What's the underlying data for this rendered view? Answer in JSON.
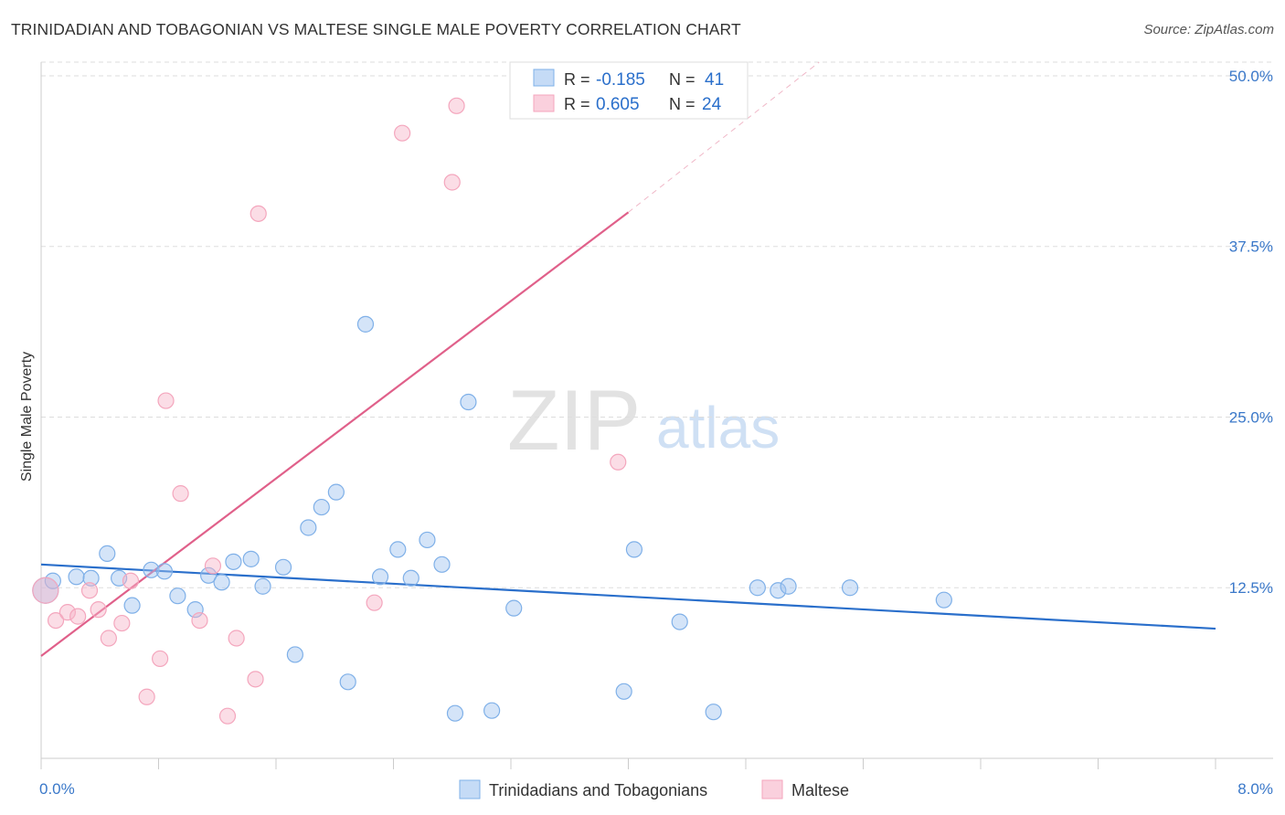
{
  "title": "TRINIDADIAN AND TOBAGONIAN VS MALTESE SINGLE MALE POVERTY CORRELATION CHART",
  "source": "Source: ZipAtlas.com",
  "watermark": {
    "zip": "ZIP",
    "atlas": "atlas"
  },
  "legend_stats": [
    {
      "r_label": "R =",
      "r_value": "-0.185",
      "n_label": "N =",
      "n_value": "41",
      "color": "#7fb0e8"
    },
    {
      "r_label": "R =",
      "r_value": "0.605",
      "n_label": "N =",
      "n_value": "24",
      "color": "#f4a6bd"
    }
  ],
  "chart_data": {
    "type": "scatter",
    "title": "TRINIDADIAN AND TOBAGONIAN VS MALTESE SINGLE MALE POVERTY CORRELATION CHART",
    "xlabel": "",
    "ylabel": "Single Male Poverty",
    "xlim": [
      0,
      8
    ],
    "ylim": [
      0,
      51
    ],
    "x_tick_labels": [
      "0.0%",
      "8.0%"
    ],
    "y_ticks": [
      12.5,
      25.0,
      37.5,
      50.0
    ],
    "y_tick_labels": [
      "12.5%",
      "25.0%",
      "37.5%",
      "50.0%"
    ],
    "grid": true,
    "legend_position": "bottom",
    "series": [
      {
        "name": "Trinidadians and Tobagonians",
        "color": "#7fb0e8",
        "line_color": "#2a6fcb",
        "trend": {
          "x": [
            0.0,
            8.0
          ],
          "y": [
            14.2,
            9.5
          ]
        },
        "points": [
          [
            0.03,
            12.3
          ],
          [
            0.08,
            13.0
          ],
          [
            0.24,
            13.3
          ],
          [
            0.34,
            13.2
          ],
          [
            0.45,
            15.0
          ],
          [
            0.53,
            13.2
          ],
          [
            0.62,
            11.2
          ],
          [
            0.75,
            13.8
          ],
          [
            0.84,
            13.7
          ],
          [
            0.93,
            11.9
          ],
          [
            1.05,
            10.9
          ],
          [
            1.14,
            13.4
          ],
          [
            1.23,
            12.9
          ],
          [
            1.31,
            14.4
          ],
          [
            1.43,
            14.6
          ],
          [
            1.51,
            12.6
          ],
          [
            1.65,
            14.0
          ],
          [
            1.73,
            7.6
          ],
          [
            1.82,
            16.9
          ],
          [
            1.91,
            18.4
          ],
          [
            2.01,
            19.5
          ],
          [
            2.09,
            5.6
          ],
          [
            2.21,
            31.8
          ],
          [
            2.31,
            13.3
          ],
          [
            2.43,
            15.3
          ],
          [
            2.52,
            13.2
          ],
          [
            2.63,
            16.0
          ],
          [
            2.73,
            14.2
          ],
          [
            2.82,
            3.3
          ],
          [
            2.91,
            26.1
          ],
          [
            3.07,
            3.5
          ],
          [
            3.22,
            11.0
          ],
          [
            3.97,
            4.9
          ],
          [
            4.04,
            15.3
          ],
          [
            4.35,
            10.0
          ],
          [
            4.58,
            3.4
          ],
          [
            4.88,
            12.5
          ],
          [
            5.02,
            12.3
          ],
          [
            5.09,
            12.6
          ],
          [
            5.51,
            12.5
          ],
          [
            6.15,
            11.6
          ]
        ]
      },
      {
        "name": "Maltese",
        "color": "#f4a6bd",
        "line_color": "#e0608a",
        "trend": {
          "x": [
            0.0,
            4.0
          ],
          "y": [
            7.5,
            40.0
          ]
        },
        "trend_dashed": {
          "x": [
            4.0,
            5.3
          ],
          "y": [
            40.0,
            51.0
          ]
        },
        "points": [
          [
            0.03,
            12.3
          ],
          [
            0.1,
            10.1
          ],
          [
            0.18,
            10.7
          ],
          [
            0.25,
            10.4
          ],
          [
            0.33,
            12.3
          ],
          [
            0.39,
            10.9
          ],
          [
            0.46,
            8.8
          ],
          [
            0.55,
            9.9
          ],
          [
            0.61,
            13.0
          ],
          [
            0.72,
            4.5
          ],
          [
            0.81,
            7.3
          ],
          [
            0.85,
            26.2
          ],
          [
            0.95,
            19.4
          ],
          [
            1.08,
            10.1
          ],
          [
            1.17,
            14.1
          ],
          [
            1.27,
            3.1
          ],
          [
            1.33,
            8.8
          ],
          [
            1.46,
            5.8
          ],
          [
            1.48,
            39.9
          ],
          [
            2.27,
            11.4
          ],
          [
            2.46,
            45.8
          ],
          [
            2.8,
            42.2
          ],
          [
            2.83,
            47.8
          ],
          [
            3.93,
            21.7
          ]
        ]
      }
    ]
  }
}
